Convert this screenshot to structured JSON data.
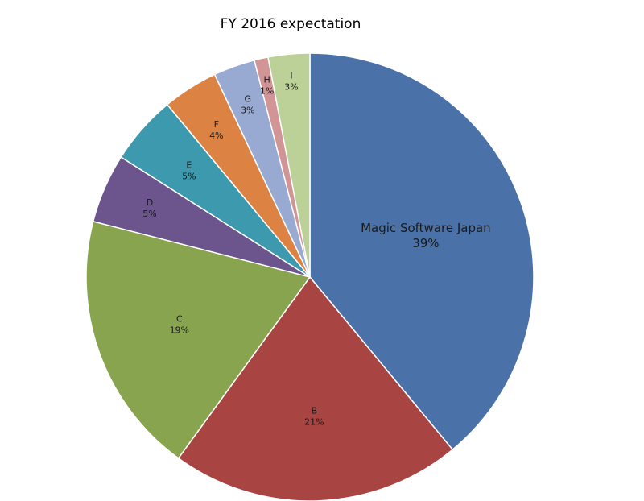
{
  "chart_data": {
    "type": "pie",
    "title": "FY 2016 expectation",
    "slices": [
      {
        "label": "Magic Software Japan",
        "value_label": "39%",
        "value": 39,
        "color": "#4a72a8"
      },
      {
        "label": "B",
        "value_label": "21%",
        "value": 21,
        "color": "#a84442"
      },
      {
        "label": "C",
        "value_label": "19%",
        "value": 19,
        "color": "#88a44e"
      },
      {
        "label": "D",
        "value_label": "5%",
        "value": 5,
        "color": "#6c558d"
      },
      {
        "label": "E",
        "value_label": "5%",
        "value": 5,
        "color": "#3d9aae"
      },
      {
        "label": "F",
        "value_label": "4%",
        "value": 4,
        "color": "#dc8343"
      },
      {
        "label": "G",
        "value_label": "3%",
        "value": 3,
        "color": "#99aad2"
      },
      {
        "label": "H",
        "value_label": "1%",
        "value": 1,
        "color": "#d29596"
      },
      {
        "label": "I",
        "value_label": "3%",
        "value": 3,
        "color": "#bcd197"
      }
    ]
  }
}
